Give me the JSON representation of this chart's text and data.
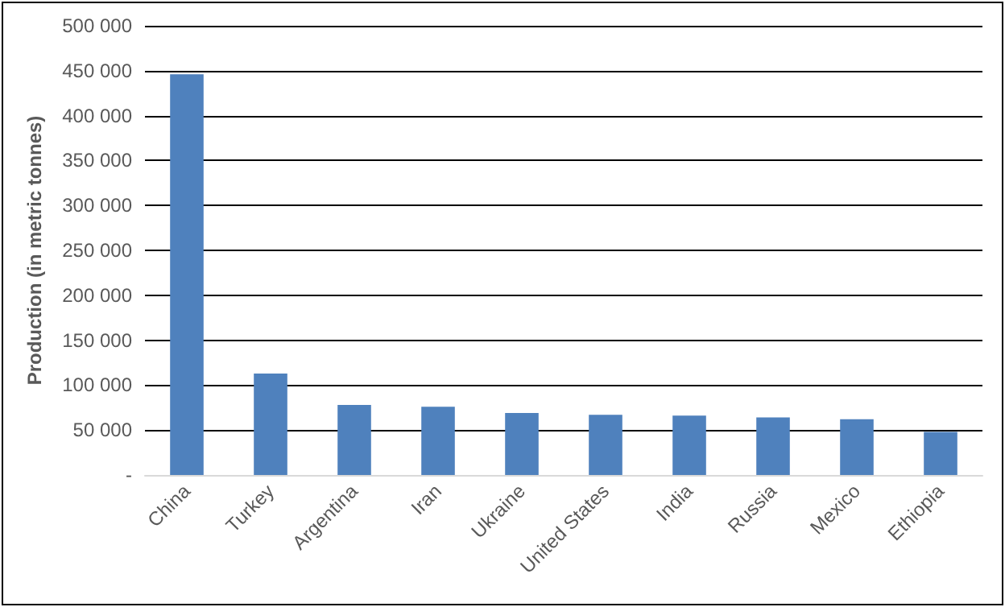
{
  "chart_data": {
    "type": "bar",
    "ylabel": "Production (in metric tonnes)",
    "categories": [
      "China",
      "Turkey",
      "Argentina",
      "Iran",
      "Ukraine",
      "United States",
      "India",
      "Russia",
      "Mexico",
      "Ethiopia"
    ],
    "values": [
      446000,
      113000,
      78000,
      76000,
      69000,
      67000,
      66000,
      64000,
      62000,
      48000
    ],
    "color": "#4f81bd",
    "ylim": [
      0,
      500000
    ],
    "yticks": [
      {
        "value": 0,
        "label": "-"
      },
      {
        "value": 50000,
        "label": "50 000"
      },
      {
        "value": 100000,
        "label": "100 000"
      },
      {
        "value": 150000,
        "label": "150 000"
      },
      {
        "value": 200000,
        "label": "200 000"
      },
      {
        "value": 250000,
        "label": "250 000"
      },
      {
        "value": 300000,
        "label": "300 000"
      },
      {
        "value": 350000,
        "label": "350 000"
      },
      {
        "value": 400000,
        "label": "400 000"
      },
      {
        "value": 450000,
        "label": "450 000"
      },
      {
        "value": 500000,
        "label": "500 000"
      }
    ],
    "grid": true
  }
}
